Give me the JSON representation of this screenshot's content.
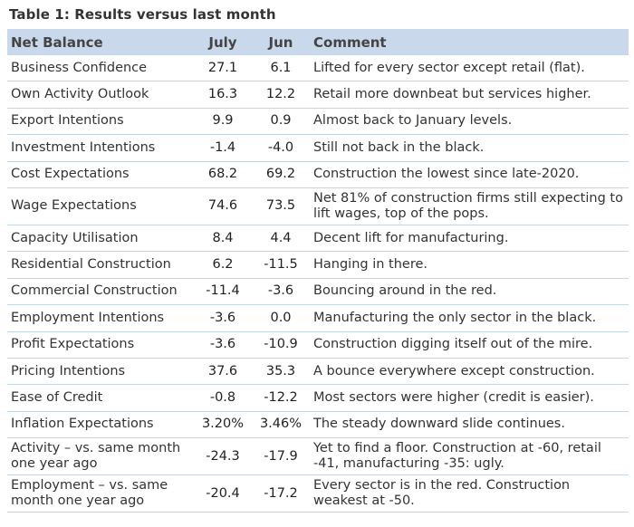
{
  "title": "Table 1: Results versus last month",
  "headers": [
    "Net Balance",
    "July",
    "Jun",
    "Comment"
  ],
  "rows": [
    {
      "label": "Business Confidence",
      "july": "27.1",
      "jun": "6.1",
      "comment": "Lifted for every sector except retail (flat)."
    },
    {
      "label": "Own Activity Outlook",
      "july": "16.3",
      "jun": "12.2",
      "comment": "Retail more downbeat but services higher."
    },
    {
      "label": "Export Intentions",
      "july": "9.9",
      "jun": "0.9",
      "comment": "Almost back to January levels."
    },
    {
      "label": "Investment Intentions",
      "july": "-1.4",
      "jun": "-4.0",
      "comment": "Still not back in the black."
    },
    {
      "label": "Cost Expectations",
      "july": "68.2",
      "jun": "69.2",
      "comment": "Construction the lowest since late-2020."
    },
    {
      "label": "Wage Expectations",
      "july": "74.6",
      "jun": "73.5",
      "comment": "Net 81% of construction firms still expecting to lift wages, top of the pops."
    },
    {
      "label": "Capacity Utilisation",
      "july": "8.4",
      "jun": "4.4",
      "comment": "Decent lift for manufacturing."
    },
    {
      "label": "Residential Construction",
      "july": "6.2",
      "jun": "-11.5",
      "comment": "Hanging in there."
    },
    {
      "label": "Commercial Construction",
      "july": "-11.4",
      "jun": "-3.6",
      "comment": "Bouncing around in the red."
    },
    {
      "label": "Employment Intentions",
      "july": "-3.6",
      "jun": "0.0",
      "comment": "Manufacturing the only sector in the black."
    },
    {
      "label": "Profit Expectations",
      "july": "-3.6",
      "jun": "-10.9",
      "comment": "Construction digging itself out of the mire."
    },
    {
      "label": "Pricing Intentions",
      "july": "37.6",
      "jun": "35.3",
      "comment": "A bounce everywhere except construction."
    },
    {
      "label": "Ease of Credit",
      "july": "-0.8",
      "jun": "-12.2",
      "comment": "Most sectors were higher (credit is easier)."
    },
    {
      "label": "Inflation Expectations",
      "july": "3.20%",
      "jun": "3.46%",
      "comment": "The steady downward slide continues."
    },
    {
      "label": "Activity – vs. same month one year ago",
      "july": "-24.3",
      "jun": "-17.9",
      "comment": "Yet to find a floor. Construction at -60, retail -41, manufacturing -35: ugly."
    },
    {
      "label": "Employment – vs. same month one year ago",
      "july": "-20.4",
      "jun": "-17.2",
      "comment": "Every sector is in the red. Construction weakest at -50."
    }
  ]
}
